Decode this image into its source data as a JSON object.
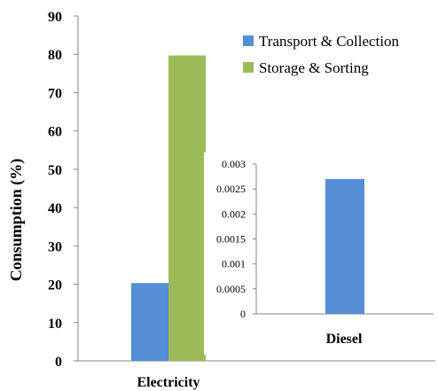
{
  "colors": {
    "transport": "#558ED5",
    "storage": "#9BBB59",
    "axis": "#868686"
  },
  "chart_data": [
    {
      "type": "bar",
      "categories": [
        "Electricity"
      ],
      "series": [
        {
          "name": "Transport & Collection",
          "values": [
            20.3
          ]
        },
        {
          "name": "Storage & Sorting",
          "values": [
            79.7
          ]
        }
      ],
      "xlabel": "",
      "ylabel": "Consumption (%)",
      "ylim": [
        0,
        90
      ],
      "yticks": [
        0,
        10,
        20,
        30,
        40,
        50,
        60,
        70,
        80,
        90
      ],
      "legend": "top-right",
      "grid": false
    },
    {
      "type": "bar",
      "categories": [
        "Diesel"
      ],
      "series": [
        {
          "name": "Transport & Collection",
          "values": [
            0.0027
          ]
        }
      ],
      "ylim": [
        0,
        0.003
      ],
      "yticks": [
        "0",
        "0.0005",
        "0.001",
        "0.0015",
        "0.002",
        "0.0025",
        "0.003"
      ],
      "grid": false
    }
  ]
}
